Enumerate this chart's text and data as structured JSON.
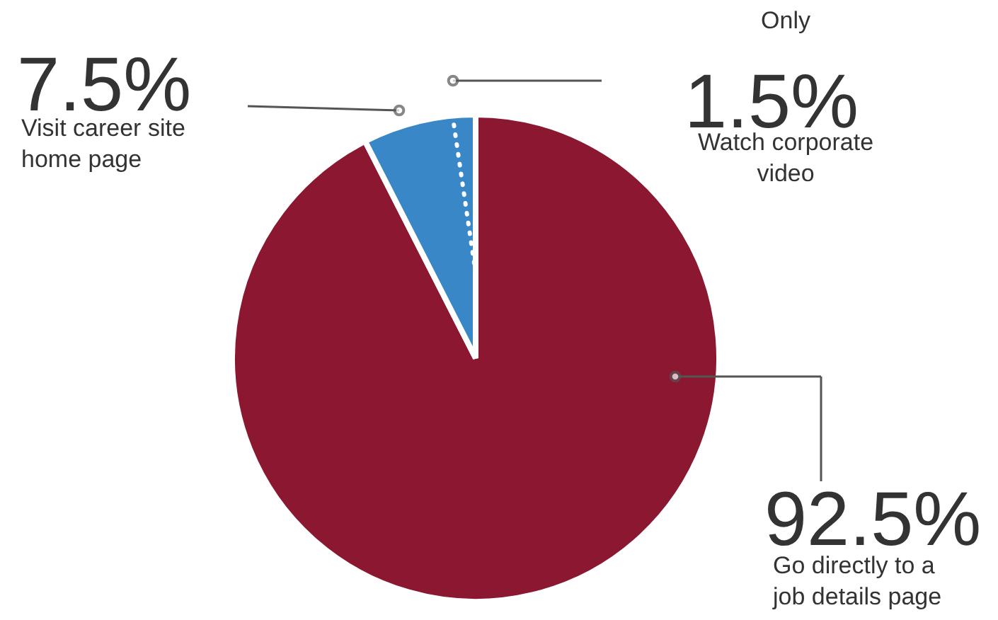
{
  "chart_data": {
    "type": "pie",
    "categories": [
      "Go directly to a job details page",
      "Visit career site home page"
    ],
    "values": [
      92.5,
      7.5
    ],
    "colors": [
      "#8b1730",
      "#3a87c8"
    ],
    "value_labels": [
      "92.5%",
      "7.5%"
    ],
    "annotations": [
      "Only",
      "1.5%",
      "Watch corporate video"
    ]
  }
}
